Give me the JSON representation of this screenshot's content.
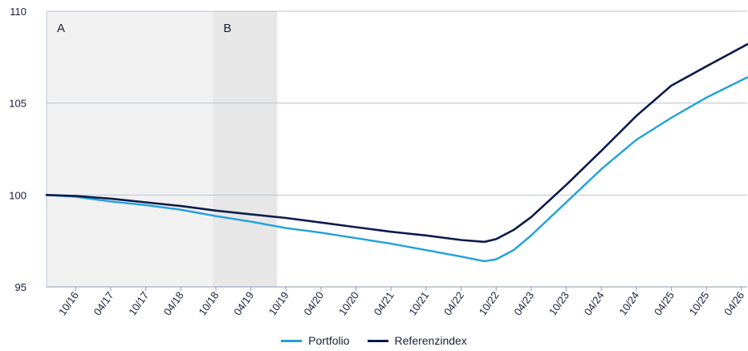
{
  "chart_data": {
    "type": "line",
    "title": "",
    "xlabel": "",
    "ylabel": "",
    "ylim": [
      95,
      110
    ],
    "yticks": [
      95,
      100,
      105,
      110
    ],
    "xlim": [
      0,
      120
    ],
    "x_tick_positions": [
      5,
      11,
      17,
      23,
      29,
      35,
      41,
      47,
      53,
      59,
      65,
      71,
      77,
      83,
      89,
      95,
      101,
      107,
      113,
      119
    ],
    "x_tick_labels": [
      "10/16",
      "04/17",
      "10/17",
      "04/18",
      "10/18",
      "04/19",
      "10/19",
      "04/20",
      "10/20",
      "04/21",
      "10/21",
      "04/22",
      "10/22",
      "04/23",
      "10/23",
      "04/24",
      "10/24",
      "04/25",
      "10/25",
      "04/26"
    ],
    "regions": [
      {
        "label": "A",
        "x_start": 0,
        "x_end": 28.5,
        "color": "#f1f1f2"
      },
      {
        "label": "B",
        "x_start": 28.5,
        "x_end": 39.5,
        "color": "#e7e7e8"
      }
    ],
    "grid": true,
    "legend_position": "bottom",
    "series": [
      {
        "name": "Portfolio",
        "color": "#1ea0dc",
        "x": [
          0,
          5,
          11,
          17,
          23,
          29,
          35,
          41,
          47,
          53,
          59,
          65,
          71,
          75,
          77,
          80,
          83,
          89,
          95,
          101,
          107,
          113,
          120
        ],
        "y": [
          100,
          99.9,
          99.65,
          99.45,
          99.2,
          98.85,
          98.55,
          98.2,
          97.95,
          97.65,
          97.35,
          97.0,
          96.65,
          96.4,
          96.5,
          97.0,
          97.8,
          99.6,
          101.4,
          103.0,
          104.2,
          105.3,
          106.4
        ]
      },
      {
        "name": "Referenzindex",
        "color": "#0b1a4a",
        "x": [
          0,
          5,
          11,
          17,
          23,
          29,
          35,
          41,
          47,
          53,
          59,
          65,
          71,
          75,
          77,
          80,
          83,
          89,
          95,
          101,
          107,
          113,
          120
        ],
        "y": [
          100,
          99.95,
          99.8,
          99.6,
          99.4,
          99.15,
          98.95,
          98.75,
          98.5,
          98.25,
          98.0,
          97.8,
          97.55,
          97.45,
          97.6,
          98.1,
          98.8,
          100.55,
          102.4,
          104.3,
          105.95,
          107.0,
          108.2
        ]
      }
    ]
  }
}
